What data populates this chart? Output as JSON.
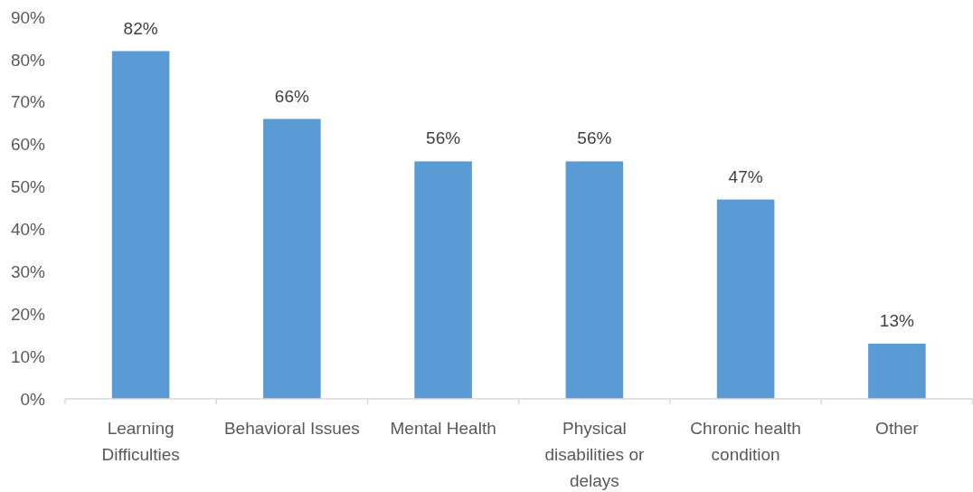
{
  "chart_data": {
    "type": "bar",
    "categories": [
      "Learning Difficulties",
      "Behavioral Issues",
      "Mental Health",
      "Physical disabilities or delays",
      "Chronic health condition",
      "Other"
    ],
    "values": [
      82,
      66,
      56,
      56,
      47,
      13
    ],
    "value_labels": [
      "82%",
      "66%",
      "56%",
      "56%",
      "47%",
      "13%"
    ],
    "color": "#5b9bd5",
    "ylim": [
      0,
      90
    ],
    "yticks": [
      {
        "value": 0,
        "label": "0%"
      },
      {
        "value": 10,
        "label": "10%"
      },
      {
        "value": 20,
        "label": "20%"
      },
      {
        "value": 30,
        "label": "30%"
      },
      {
        "value": 40,
        "label": "40%"
      },
      {
        "value": 50,
        "label": "50%"
      },
      {
        "value": 60,
        "label": "60%"
      },
      {
        "value": 70,
        "label": "70%"
      },
      {
        "value": 80,
        "label": "80%"
      },
      {
        "value": 90,
        "label": "90%"
      }
    ]
  }
}
